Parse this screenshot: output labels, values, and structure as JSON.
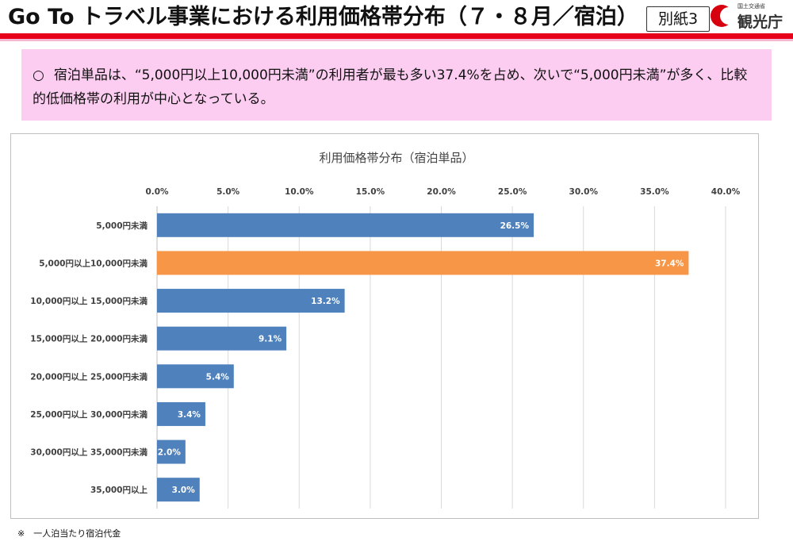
{
  "header": {
    "title": "Go To トラベル事業における利用価格帯分布（７・８月／宿泊）",
    "badge": "別紙3",
    "logo_small_text": "国土交通省",
    "logo_text": "観光庁"
  },
  "summary": {
    "marker": "○",
    "text": "宿泊単品は、“5,000円以上10,000円未満”の利用者が最も多い37.4%を占め、次いで“5,000円未満”が多く、比較的低価格帯の利用が中心となっている。"
  },
  "footnote": "※　一人泊当たり宿泊代金",
  "colors": {
    "bar": "#4f81bd",
    "highlight": "#f79646",
    "grid": "#d9d9d9"
  },
  "chart_data": {
    "type": "bar",
    "orientation": "horizontal",
    "title": "利用価格帯分布（宿泊単品）",
    "categories": [
      "5,000円未満",
      "5,000円以上10,000円未満",
      "10,000円以上 15,000円未満",
      "15,000円以上 20,000円未満",
      "20,000円以上 25,000円未満",
      "25,000円以上 30,000円未満",
      "30,000円以上 35,000円未満",
      "35,000円以上"
    ],
    "values": [
      26.5,
      37.4,
      13.2,
      9.1,
      5.4,
      3.4,
      2.0,
      3.0
    ],
    "data_labels": [
      "26.5%",
      "37.4%",
      "13.2%",
      "9.1%",
      "5.4%",
      "3.4%",
      "2.0%",
      "3.0%"
    ],
    "highlight_index": 1,
    "xlim": [
      0,
      40
    ],
    "xticks": [
      "0.0%",
      "5.0%",
      "10.0%",
      "15.0%",
      "20.0%",
      "25.0%",
      "30.0%",
      "35.0%",
      "40.0%"
    ],
    "xaxis_position": "top",
    "grid": true,
    "legend": "none"
  }
}
